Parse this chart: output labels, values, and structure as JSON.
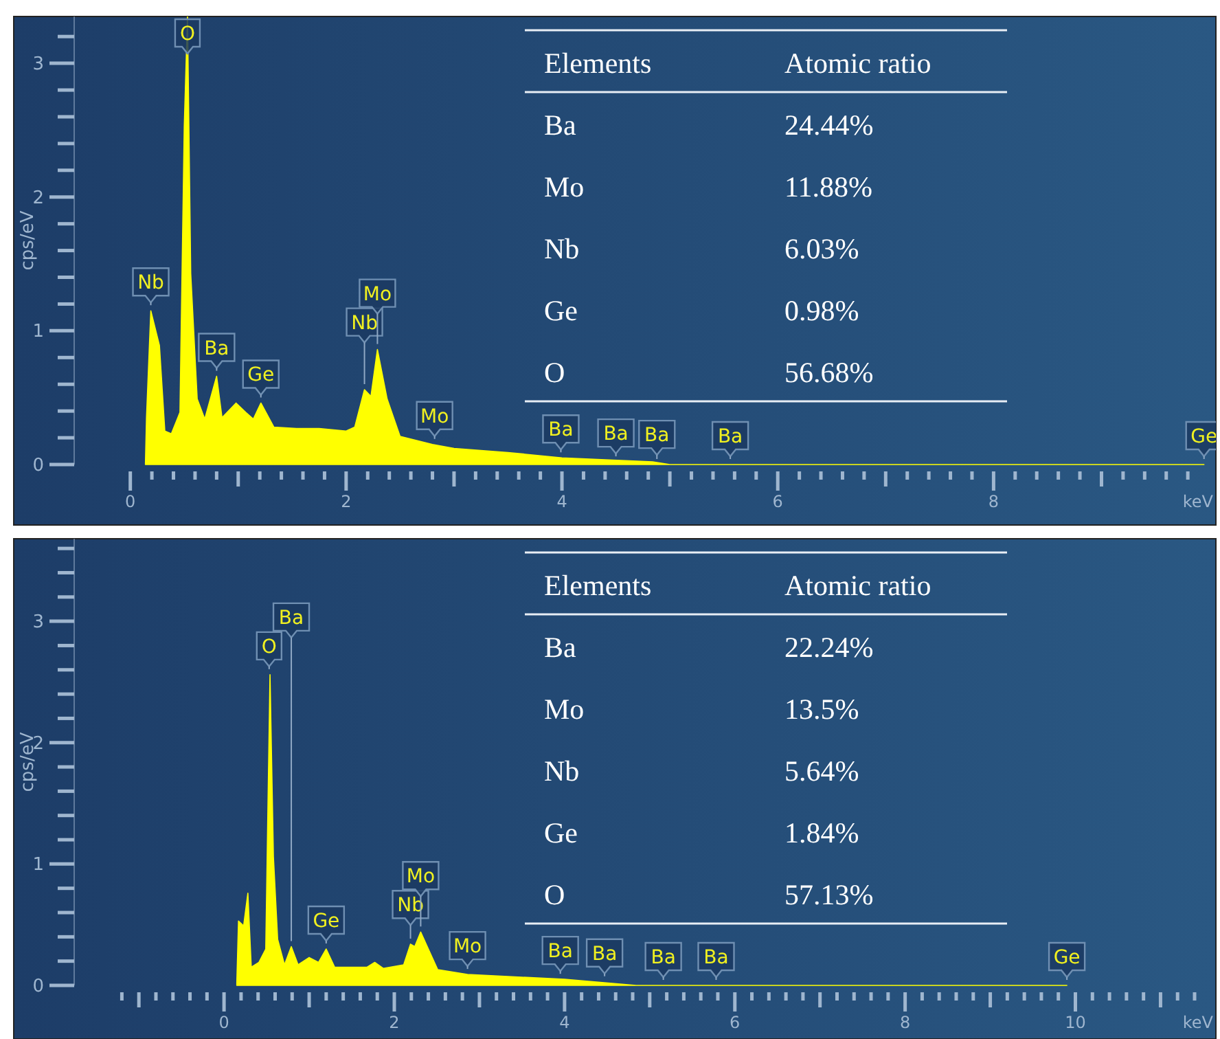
{
  "chart_data": [
    {
      "type": "area",
      "ylabel": "cps/eV",
      "xlabel": "keV",
      "color": "#ffff00",
      "x": [
        0.14,
        0.15,
        0.19,
        0.27,
        0.32,
        0.38,
        0.46,
        0.5,
        0.53,
        0.56,
        0.62,
        0.69,
        0.8,
        0.85,
        0.98,
        1.07,
        1.14,
        1.21,
        1.33,
        1.54,
        1.75,
        2.0,
        2.08,
        2.17,
        2.23,
        2.29,
        2.38,
        2.5,
        2.8,
        3.0,
        3.5,
        4.0,
        4.84,
        5.0,
        5.56,
        9.95
      ],
      "values": [
        0,
        0.35,
        1.15,
        0.89,
        0.25,
        0.23,
        0.39,
        2.53,
        3.35,
        1.43,
        0.49,
        0.34,
        0.66,
        0.35,
        0.46,
        0.39,
        0.34,
        0.46,
        0.28,
        0.27,
        0.27,
        0.25,
        0.28,
        0.56,
        0.51,
        0.86,
        0.49,
        0.21,
        0.15,
        0.12,
        0.09,
        0.05,
        0.02,
        0,
        0,
        0
      ],
      "xlim": [
        -0.52,
        10.06
      ],
      "ylim": [
        0,
        3.35
      ],
      "yticks": [
        0,
        {
          "value": 0.2,
          "label": null
        },
        {
          "value": 0.4,
          "label": null
        },
        {
          "value": 0.6,
          "label": null
        },
        {
          "value": 0.8,
          "label": null
        },
        1,
        {
          "value": 1.2,
          "label": null
        },
        {
          "value": 1.4,
          "label": null
        },
        {
          "value": 1.6,
          "label": null
        },
        {
          "value": 1.8,
          "label": null
        },
        2,
        {
          "value": 2.2,
          "label": null
        },
        {
          "value": 2.4,
          "label": null
        },
        {
          "value": 2.6,
          "label": null
        },
        {
          "value": 2.8,
          "label": null
        },
        3,
        {
          "value": 3.2,
          "label": null
        }
      ],
      "xticks": [
        0,
        {
          "value": 0.2,
          "label": null
        },
        {
          "value": 0.4,
          "label": null
        },
        {
          "value": 0.6,
          "label": null
        },
        {
          "value": 0.8,
          "label": null
        },
        {
          "value": 1,
          "label": null
        },
        {
          "value": 1.2,
          "label": null
        },
        {
          "value": 1.4,
          "label": null
        },
        {
          "value": 1.6,
          "label": null
        },
        {
          "value": 1.8,
          "label": null
        },
        2,
        {
          "value": 2.2,
          "label": null
        },
        {
          "value": 2.4,
          "label": null
        },
        {
          "value": 2.6,
          "label": null
        },
        {
          "value": 2.8,
          "label": null
        },
        {
          "value": 3,
          "label": null
        },
        {
          "value": 3.2,
          "label": null
        },
        {
          "value": 3.4,
          "label": null
        },
        {
          "value": 3.6,
          "label": null
        },
        {
          "value": 3.8,
          "label": null
        },
        4,
        {
          "value": 4.2,
          "label": null
        },
        {
          "value": 4.4,
          "label": null
        },
        {
          "value": 4.6,
          "label": null
        },
        {
          "value": 4.8,
          "label": null
        },
        {
          "value": 5,
          "label": null
        },
        {
          "value": 5.2,
          "label": null
        },
        {
          "value": 5.4,
          "label": null
        },
        {
          "value": 5.6,
          "label": null
        },
        {
          "value": 5.8,
          "label": null
        },
        6,
        {
          "value": 6.2,
          "label": null
        },
        {
          "value": 6.4,
          "label": null
        },
        {
          "value": 6.6,
          "label": null
        },
        {
          "value": 6.8,
          "label": null
        },
        {
          "value": 7,
          "label": null
        },
        {
          "value": 7.2,
          "label": null
        },
        {
          "value": 7.4,
          "label": null
        },
        {
          "value": 7.6,
          "label": null
        },
        {
          "value": 7.8,
          "label": null
        },
        8,
        {
          "value": 8.2,
          "label": null
        },
        {
          "value": 8.4,
          "label": null
        },
        {
          "value": 8.6,
          "label": null
        },
        {
          "value": 8.8,
          "label": null
        },
        {
          "value": 9,
          "label": null
        },
        {
          "value": 9.2,
          "label": null
        },
        {
          "value": 9.4,
          "label": null
        },
        {
          "value": 9.6,
          "label": null
        },
        {
          "value": 9.8,
          "label": null
        }
      ],
      "annotations": [
        {
          "text": "Nb",
          "x": 0.19,
          "y": 1.15
        },
        {
          "text": "O",
          "x": 0.53,
          "y": 3.05
        },
        {
          "text": "Ba",
          "x": 0.8,
          "y": 0.66
        },
        {
          "text": "Ge",
          "x": 1.21,
          "y": 0.46
        },
        {
          "text": "Nb",
          "x": 2.17,
          "y": 0.56
        },
        {
          "text": "Mo",
          "x": 2.29,
          "y": 0.86
        },
        {
          "text": "Mo",
          "x": 2.82,
          "y": 0.15
        },
        {
          "text": "Ba",
          "x": 3.99,
          "y": 0.05
        },
        {
          "text": "Ba",
          "x": 4.5,
          "y": 0.02
        },
        {
          "text": "Ba",
          "x": 4.88,
          "y": 0
        },
        {
          "text": "Ba",
          "x": 5.56,
          "y": 0
        },
        {
          "text": "Ge",
          "x": 9.95,
          "y": 0
        },
        "Elements",
        "Atomic ratio",
        "Ba",
        "24.44%",
        "Mo",
        "11.88%",
        "Nb",
        "6.03%",
        "Ge",
        "0.98%",
        "O",
        "56.68%"
      ]
    },
    {
      "type": "area",
      "ylabel": "cps/eV",
      "xlabel": "keV",
      "color": "#ffff00",
      "x": [
        0.15,
        0.17,
        0.23,
        0.28,
        0.32,
        0.41,
        0.49,
        0.54,
        0.58,
        0.63,
        0.71,
        0.79,
        0.87,
        1.0,
        1.11,
        1.2,
        1.3,
        1.68,
        1.77,
        1.87,
        2.11,
        2.19,
        2.24,
        2.31,
        2.4,
        2.51,
        2.86,
        4.0,
        4.84,
        5.16,
        5.78,
        9.9
      ],
      "values": [
        0.02,
        0.53,
        0.49,
        0.76,
        0.15,
        0.19,
        0.3,
        2.56,
        1.06,
        0.38,
        0.17,
        0.32,
        0.17,
        0.23,
        0.19,
        0.3,
        0.15,
        0.15,
        0.19,
        0.14,
        0.17,
        0.34,
        0.32,
        0.44,
        0.3,
        0.13,
        0.09,
        0.05,
        0,
        0,
        0,
        0
      ],
      "xlim": [
        -1.76,
        11.65
      ],
      "ylim": [
        0,
        3.68
      ],
      "yticks": [
        0,
        {
          "value": 0.2,
          "label": null
        },
        {
          "value": 0.4,
          "label": null
        },
        {
          "value": 0.6,
          "label": null
        },
        {
          "value": 0.8,
          "label": null
        },
        1,
        {
          "value": 1.2,
          "label": null
        },
        {
          "value": 1.4,
          "label": null
        },
        {
          "value": 1.6,
          "label": null
        },
        {
          "value": 1.8,
          "label": null
        },
        2,
        {
          "value": 2.2,
          "label": null
        },
        {
          "value": 2.4,
          "label": null
        },
        {
          "value": 2.6,
          "label": null
        },
        {
          "value": 2.8,
          "label": null
        },
        3,
        {
          "value": 3.2,
          "label": null
        },
        {
          "value": 3.4,
          "label": null
        },
        {
          "value": 3.6,
          "label": null
        }
      ],
      "xticks": [
        {
          "value": -1.2,
          "label": null
        },
        {
          "value": -1,
          "label": null
        },
        {
          "value": -0.8,
          "label": null
        },
        {
          "value": -0.6,
          "label": null
        },
        {
          "value": -0.4,
          "label": null
        },
        {
          "value": -0.2,
          "label": null
        },
        0,
        {
          "value": 0.2,
          "label": null
        },
        {
          "value": 0.4,
          "label": null
        },
        {
          "value": 0.6,
          "label": null
        },
        {
          "value": 0.8,
          "label": null
        },
        {
          "value": 1,
          "label": null
        },
        {
          "value": 1.2,
          "label": null
        },
        {
          "value": 1.4,
          "label": null
        },
        {
          "value": 1.6,
          "label": null
        },
        {
          "value": 1.8,
          "label": null
        },
        2,
        {
          "value": 2.2,
          "label": null
        },
        {
          "value": 2.4,
          "label": null
        },
        {
          "value": 2.6,
          "label": null
        },
        {
          "value": 2.8,
          "label": null
        },
        {
          "value": 3,
          "label": null
        },
        {
          "value": 3.2,
          "label": null
        },
        {
          "value": 3.4,
          "label": null
        },
        {
          "value": 3.6,
          "label": null
        },
        {
          "value": 3.8,
          "label": null
        },
        4,
        {
          "value": 4.2,
          "label": null
        },
        {
          "value": 4.4,
          "label": null
        },
        {
          "value": 4.6,
          "label": null
        },
        {
          "value": 4.8,
          "label": null
        },
        {
          "value": 5,
          "label": null
        },
        {
          "value": 5.2,
          "label": null
        },
        {
          "value": 5.4,
          "label": null
        },
        {
          "value": 5.6,
          "label": null
        },
        {
          "value": 5.8,
          "label": null
        },
        6,
        {
          "value": 6.2,
          "label": null
        },
        {
          "value": 6.4,
          "label": null
        },
        {
          "value": 6.6,
          "label": null
        },
        {
          "value": 6.8,
          "label": null
        },
        {
          "value": 7,
          "label": null
        },
        {
          "value": 7.2,
          "label": null
        },
        {
          "value": 7.4,
          "label": null
        },
        {
          "value": 7.6,
          "label": null
        },
        {
          "value": 7.8,
          "label": null
        },
        8,
        {
          "value": 8.2,
          "label": null
        },
        {
          "value": 8.4,
          "label": null
        },
        {
          "value": 8.6,
          "label": null
        },
        {
          "value": 8.8,
          "label": null
        },
        {
          "value": 9,
          "label": null
        },
        {
          "value": 9.2,
          "label": null
        },
        {
          "value": 9.4,
          "label": null
        },
        {
          "value": 9.6,
          "label": null
        },
        {
          "value": 9.8,
          "label": null
        },
        10,
        {
          "value": 10.2,
          "label": null
        },
        {
          "value": 10.4,
          "label": null
        },
        {
          "value": 10.6,
          "label": null
        },
        {
          "value": 10.8,
          "label": null
        },
        {
          "value": 11,
          "label": null
        },
        {
          "value": 11.2,
          "label": null
        },
        {
          "value": 11.4,
          "label": null
        }
      ],
      "annotations": [
        {
          "text": "O",
          "x": 0.53,
          "y": 2.56
        },
        {
          "text": "Ba",
          "x": 0.79,
          "y": 0.32
        },
        {
          "text": "Ge",
          "x": 1.2,
          "y": 0.3
        },
        {
          "text": "Nb",
          "x": 2.19,
          "y": 0.34
        },
        {
          "text": "Mo",
          "x": 2.31,
          "y": 0.44
        },
        {
          "text": "Mo",
          "x": 2.86,
          "y": 0.09
        },
        {
          "text": "Ba",
          "x": 3.95,
          "y": 0.05
        },
        {
          "text": "Ba",
          "x": 4.47,
          "y": 0.03
        },
        {
          "text": "Ba",
          "x": 5.16,
          "y": 0
        },
        {
          "text": "Ba",
          "x": 5.78,
          "y": 0
        },
        {
          "text": "Ge",
          "x": 9.9,
          "y": 0
        },
        "Elements",
        "Atomic ratio",
        "Ba",
        "22.24%",
        "Mo",
        "13.5%",
        "Nb",
        "5.64%",
        "Ge",
        "1.84%",
        "O",
        "57.13%"
      ]
    }
  ]
}
